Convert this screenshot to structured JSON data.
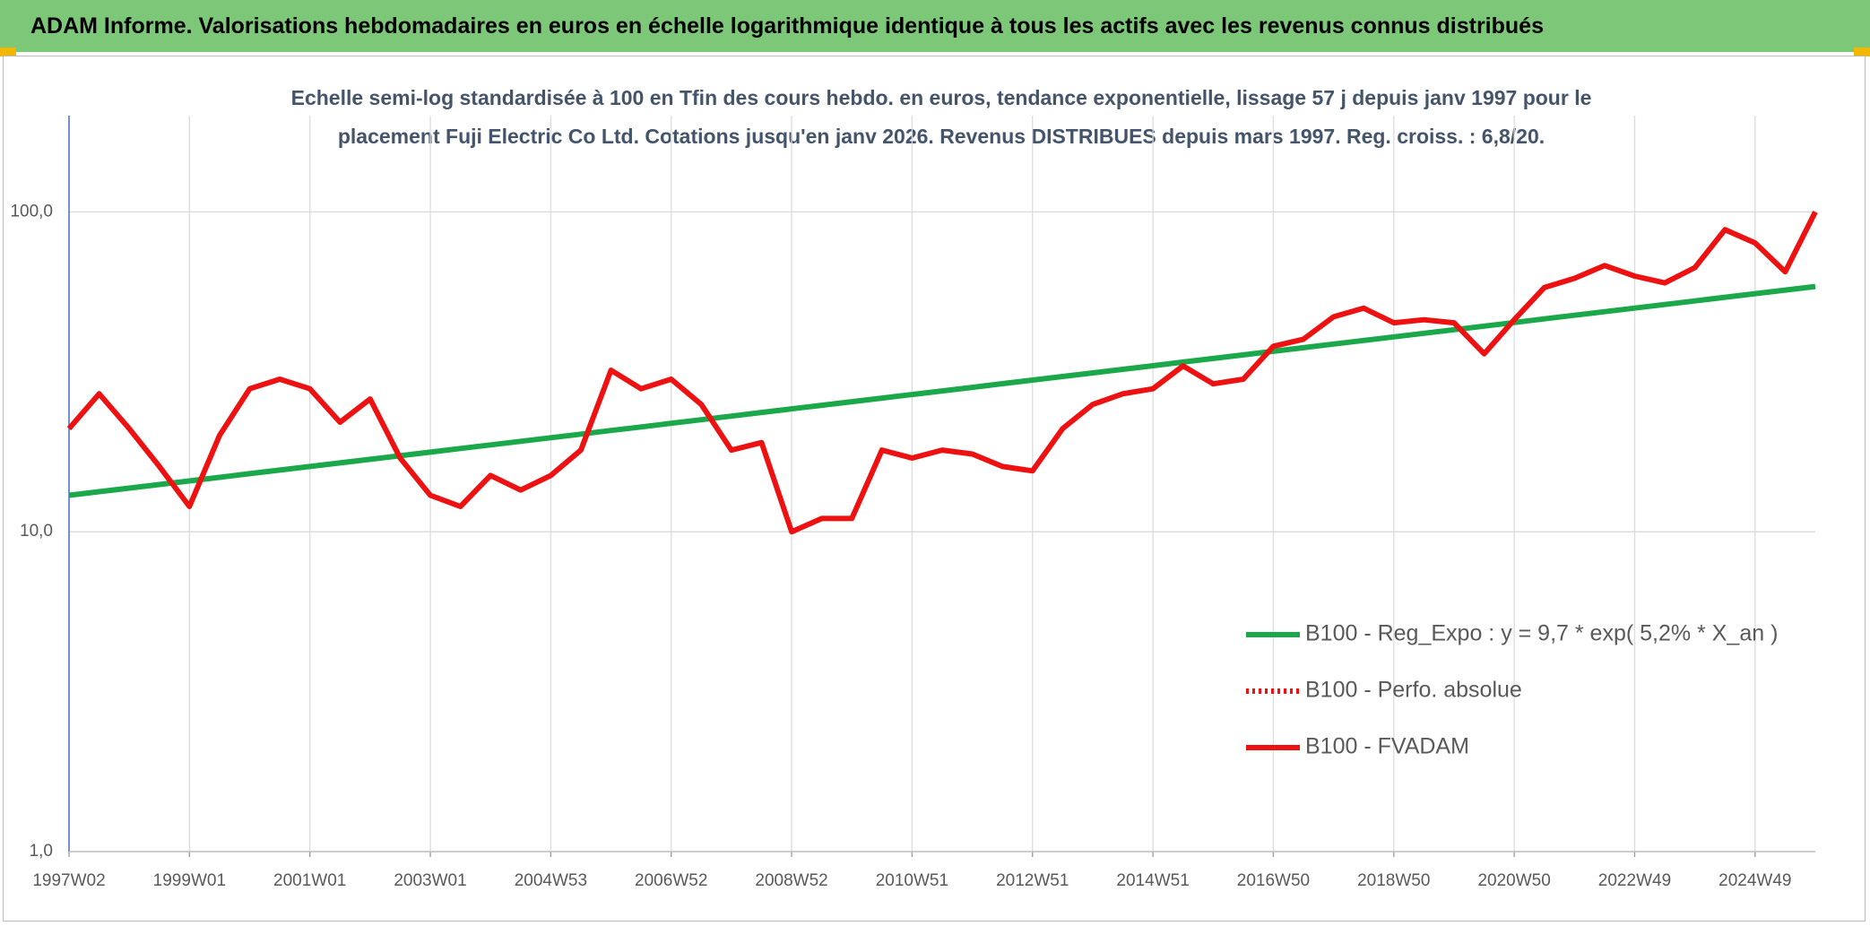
{
  "chart_data": {
    "type": "line",
    "title": "ADAM Informe. Valorisations hebdomadaires en euros en échelle logarithmique identique à tous les actifs avec les revenus connus distribués",
    "subtitle": "Echelle semi-log standardisée à 100 en Tfin des cours hebdo. en euros, tendance exponentielle, lissage 57 j depuis janv 1997 pour le placement Fuji Electric Co Ltd. Cotations jusqu'en janv 2026. Revenus DISTRIBUES depuis mars 1997. Reg. croiss. : 6,8/20.",
    "categories": [
      "1997W02",
      null,
      null,
      null,
      "1999W01",
      null,
      null,
      null,
      "2001W01",
      null,
      null,
      null,
      "2003W01",
      null,
      null,
      null,
      "2004W53",
      null,
      null,
      null,
      "2006W52",
      null,
      null,
      null,
      "2008W52",
      null,
      null,
      null,
      "2010W51",
      null,
      null,
      null,
      "2012W51",
      null,
      null,
      null,
      "2014W51",
      null,
      null,
      null,
      "2016W50",
      null,
      null,
      null,
      "2018W50",
      null,
      null,
      null,
      "2020W50",
      null,
      null,
      null,
      "2022W49",
      null,
      null,
      null,
      "2024W49",
      null,
      null
    ],
    "series": [
      {
        "name": "B100 - Reg_Expo : y = 9,7 * exp( 5,2% *  X_an )",
        "color": "#1aa84a",
        "style": "solid",
        "values": [
          13.0,
          13.34,
          13.69,
          14.05,
          14.42,
          14.8,
          15.19,
          15.59,
          16.0,
          16.42,
          16.85,
          17.29,
          17.74,
          18.21,
          18.69,
          19.18,
          19.68,
          20.2,
          20.73,
          21.27,
          21.83,
          22.41,
          22.99,
          23.6,
          24.22,
          24.86,
          25.51,
          26.18,
          26.86,
          27.57,
          28.29,
          29.04,
          29.8,
          30.58,
          31.38,
          32.21,
          33.05,
          33.92,
          34.81,
          35.73,
          36.67,
          37.63,
          38.62,
          39.63,
          40.67,
          41.74,
          42.84,
          43.96,
          45.11,
          46.3,
          47.51,
          48.76,
          50.04,
          51.35,
          52.7,
          54.09,
          55.51,
          56.96,
          58.46
        ]
      },
      {
        "name": "B100 - Perfo. absolue",
        "color": "#ee1111",
        "style": "dotted",
        "values": [
          null,
          null,
          null,
          null,
          null,
          null,
          null,
          null,
          null,
          null,
          null,
          null,
          null,
          null,
          null,
          null,
          null,
          null,
          null,
          null,
          null,
          null,
          null,
          null,
          null,
          null,
          null,
          null,
          null,
          null,
          null,
          null,
          null,
          null,
          null,
          null,
          null,
          null,
          null,
          null,
          null,
          null,
          null,
          null,
          null,
          null,
          null,
          null,
          null,
          null,
          null,
          null,
          null,
          null,
          null,
          null,
          null,
          null,
          null
        ]
      },
      {
        "name": "B100 - FVADAM",
        "color": "#ee1111",
        "style": "solid",
        "values": [
          21,
          27,
          21,
          16,
          12,
          20,
          28,
          30,
          28,
          22,
          26,
          17,
          13,
          12,
          15,
          13.5,
          15,
          18,
          32,
          28,
          30,
          25,
          18,
          19,
          10,
          11,
          11,
          18,
          17,
          18,
          17.5,
          16,
          15.5,
          21,
          25,
          27,
          28,
          33,
          29,
          30,
          38,
          40,
          47,
          50,
          45,
          46,
          45,
          36,
          46,
          58,
          62,
          68,
          63,
          60,
          67,
          88,
          80,
          65,
          100
        ]
      }
    ],
    "ylim": [
      1,
      200
    ],
    "yticks": [
      {
        "value": 1,
        "label": "1,0"
      },
      {
        "value": 10,
        "label": "10,0"
      },
      {
        "value": 100,
        "label": "100,0"
      }
    ],
    "log_scale": true,
    "grid": true,
    "legend": "lower right"
  }
}
